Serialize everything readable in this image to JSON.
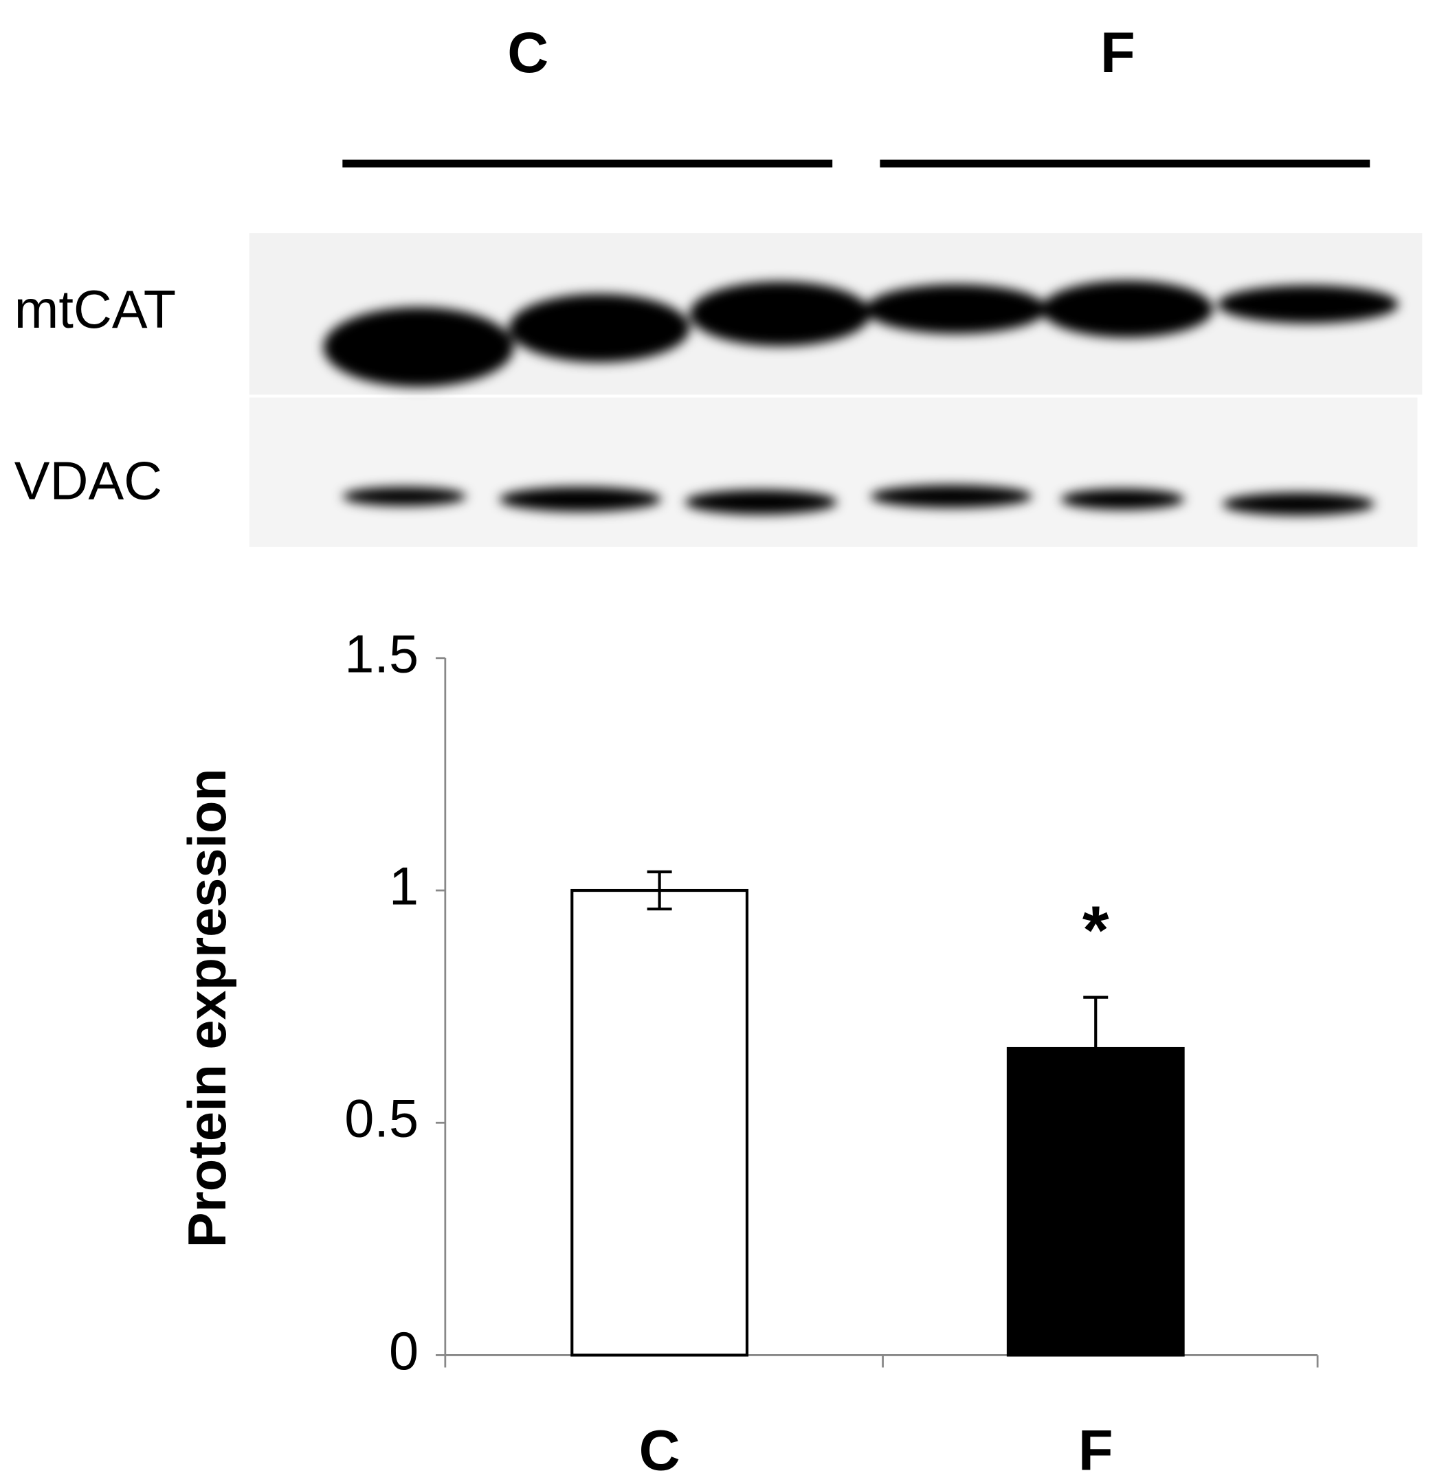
{
  "blot": {
    "groups": [
      "C",
      "F"
    ],
    "rows": [
      "mtCAT",
      "VDAC"
    ]
  },
  "chart_data": {
    "type": "bar",
    "y_label": "Protein expression",
    "categories": [
      "C",
      "F"
    ],
    "values": [
      1.0,
      0.66
    ],
    "errors": [
      0.04,
      0.11
    ],
    "colors": [
      "#ffffff",
      "#000000"
    ],
    "annotation": "*",
    "ylim": [
      0,
      1.5
    ],
    "yticks": [
      0,
      0.5,
      1,
      1.5
    ],
    "grid": false
  }
}
